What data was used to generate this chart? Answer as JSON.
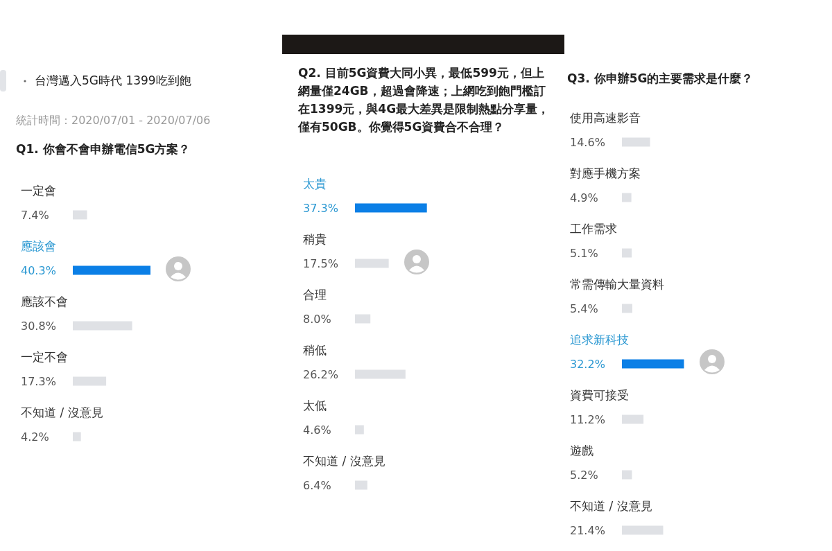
{
  "chart_data": [
    {
      "type": "other",
      "title": "台灣邁入5G時代 1399吃到飽",
      "annotations": [
        "統計時間：2020/07/01 - 2020/07/06"
      ]
    },
    {
      "type": "bar",
      "orientation": "horizontal",
      "title": "Q1. 你會不會申辦電信5G方案？",
      "categories": [
        "一定會",
        "應該會",
        "應該不會",
        "一定不會",
        "不知道 / 沒意見"
      ],
      "values": [
        7.4,
        40.3,
        30.8,
        17.3,
        4.2
      ],
      "value_labels": [
        "7.4%",
        "40.3%",
        "30.8%",
        "17.3%",
        "4.2%"
      ],
      "colors": [
        "#dfe1e5",
        "#0b7fe6",
        "#dfe1e5",
        "#dfe1e5",
        "#dfe1e5"
      ]
    },
    {
      "type": "bar",
      "orientation": "horizontal",
      "title": "Q2. 目前5G資費大同小異，最低599元，但上網量僅24GB，超過會降速；上網吃到飽門檻訂在1399元，與4G最大差異是限制熱點分享量，僅有50GB。你覺得5G資費合不合理？",
      "categories": [
        "太貴",
        "稍貴",
        "合理",
        "稍低",
        "太低",
        "不知道 / 沒意見"
      ],
      "values": [
        37.3,
        17.5,
        8.0,
        26.2,
        4.6,
        6.4
      ],
      "value_labels": [
        "37.3%",
        "17.5%",
        "8.0%",
        "26.2%",
        "4.6%",
        "6.4%"
      ],
      "colors": [
        "#0b7fe6",
        "#dfe1e5",
        "#dfe1e5",
        "#dfe1e5",
        "#dfe1e5",
        "#dfe1e5"
      ]
    },
    {
      "type": "bar",
      "orientation": "horizontal",
      "title": "Q3. 你申辦5G的主要需求是什麼？",
      "categories": [
        "使用高速影音",
        "對應手機方案",
        "工作需求",
        "常需傳輸大量資料",
        "追求新科技",
        "資費可接受",
        "遊戲",
        "不知道 / 沒意見"
      ],
      "values": [
        14.6,
        4.9,
        5.1,
        5.4,
        32.2,
        11.2,
        5.2,
        21.4
      ],
      "value_labels": [
        "14.6%",
        "4.9%",
        "5.1%",
        "5.4%",
        "32.2%",
        "11.2%",
        "5.2%",
        "21.4%"
      ],
      "colors": [
        "#dfe1e5",
        "#dfe1e5",
        "#dfe1e5",
        "#dfe1e5",
        "#0b7fe6",
        "#dfe1e5",
        "#dfe1e5",
        "#dfe1e5"
      ]
    }
  ]
}
